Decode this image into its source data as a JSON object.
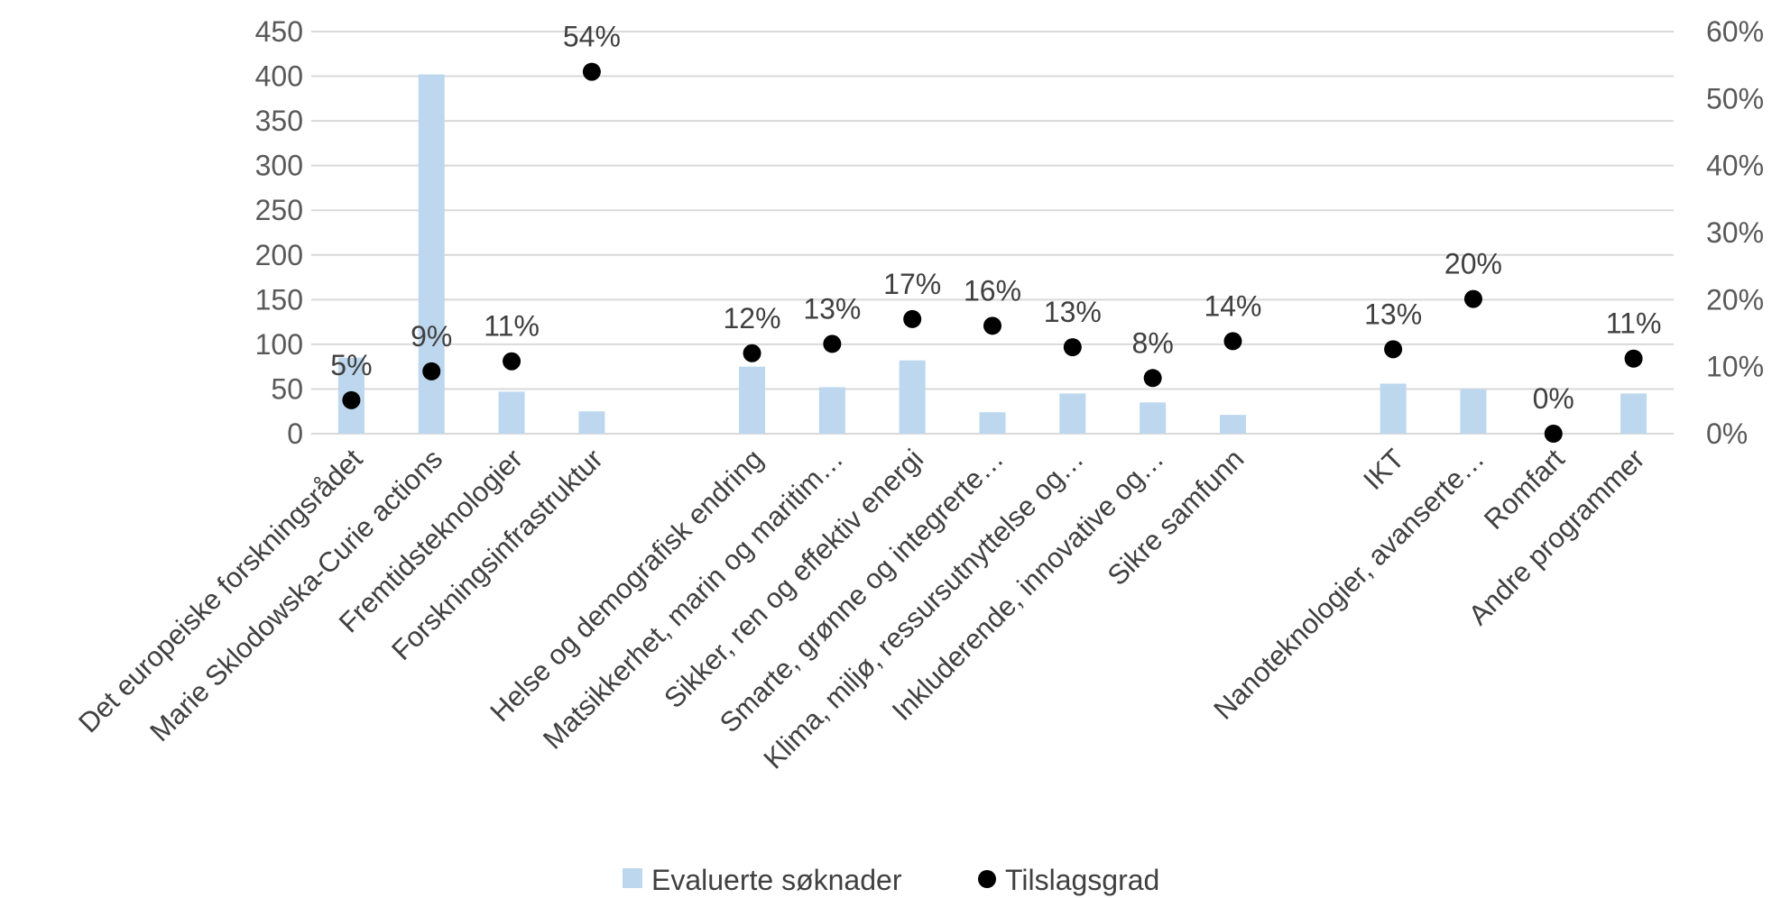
{
  "chart_data": {
    "type": "bar",
    "categories": [
      "Det europeiske forskningsrådet",
      "Marie Sklodowska-Curie actions",
      "Fremtidsteknologier",
      "Forskningsinfrastruktur",
      "",
      "Helse og demografisk endring",
      "Matsikkerhet, marin og maritim…",
      "Sikker, ren og effektiv energi",
      "Smarte, grønne og integrerte…",
      "Klima, miljø, ressursutnyttelse og…",
      "Inkluderende, innovative og…",
      "Sikre samfunn",
      "",
      "IKT",
      "Nanoteknologier, avanserte…",
      "Romfart",
      "Andre programmer"
    ],
    "series": [
      {
        "name": "Evaluerte søknader",
        "type": "bar",
        "axis": "left",
        "color": "#bdd7ee",
        "values": [
          85,
          402,
          47,
          25,
          null,
          75,
          52,
          82,
          24,
          45,
          35,
          21,
          null,
          56,
          50,
          0,
          45
        ]
      },
      {
        "name": "Tilslagsgrad",
        "type": "scatter",
        "axis": "right",
        "color": "#000000",
        "values": [
          5,
          9.3,
          10.8,
          54,
          null,
          12,
          13.4,
          17.1,
          16.1,
          12.9,
          8.3,
          13.8,
          null,
          12.6,
          20.1,
          0,
          11.2
        ],
        "labels": [
          "5%",
          "9%",
          "11%",
          "54%",
          "",
          "12%",
          "13%",
          "17%",
          "16%",
          "13%",
          "8%",
          "14%",
          "",
          "13%",
          "20%",
          "0%",
          "11%"
        ]
      }
    ],
    "y_left": {
      "ylim": [
        0,
        450
      ],
      "ticks": [
        0,
        50,
        100,
        150,
        200,
        250,
        300,
        350,
        400,
        450
      ],
      "tick_labels": [
        "0",
        "50",
        "100",
        "150",
        "200",
        "250",
        "300",
        "350",
        "400",
        "450"
      ]
    },
    "y_right": {
      "ylim": [
        0,
        60
      ],
      "ticks": [
        0,
        10,
        20,
        30,
        40,
        50,
        60
      ],
      "tick_labels": [
        "0%",
        "10%",
        "20%",
        "30%",
        "40%",
        "50%",
        "60%"
      ]
    },
    "grid": true,
    "legend": {
      "position": "bottom",
      "entries": [
        "Evaluerte søknader",
        "Tilslagsgrad"
      ]
    },
    "title": "",
    "xlabel": "",
    "ylabel": ""
  }
}
